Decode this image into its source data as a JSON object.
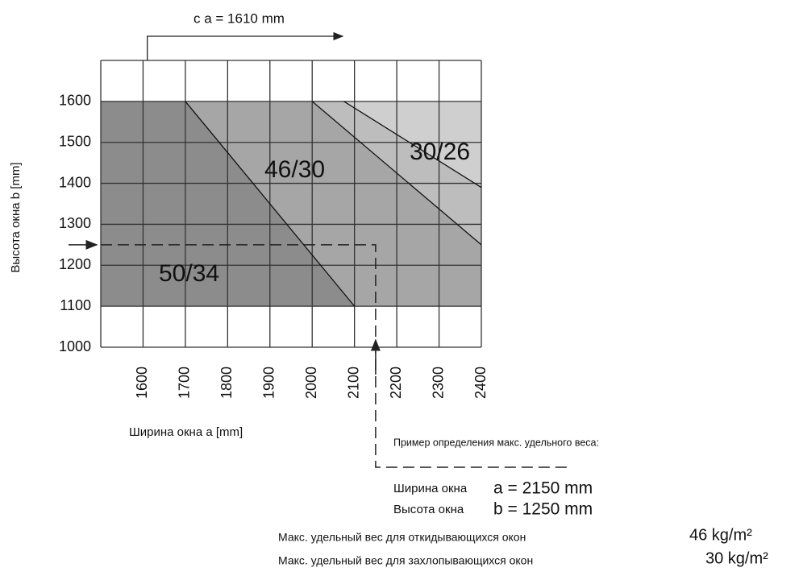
{
  "chart_data": {
    "type": "zones",
    "x_label": "Ширина окна  a  [mm]",
    "y_label": "Высота окна  b  [mm]",
    "xlim": [
      1500,
      2400
    ],
    "ylim": [
      1000,
      1700
    ],
    "xticks": [
      1600,
      1700,
      1800,
      1900,
      2000,
      2100,
      2200,
      2300,
      2400
    ],
    "yticks": [
      1000,
      1100,
      1200,
      1300,
      1400,
      1500,
      1600
    ],
    "grid": true,
    "shaded_ylim": [
      1100,
      1600
    ],
    "boundaries": [
      {
        "x": [
          1700,
          2100
        ],
        "y": [
          1600,
          1100
        ]
      },
      {
        "x": [
          2000,
          2400
        ],
        "y": [
          1600,
          1250
        ]
      },
      {
        "x": [
          2075,
          2400
        ],
        "y": [
          1600,
          1390
        ]
      }
    ],
    "zones": [
      {
        "name": "50/34",
        "color": "#8c8c8c"
      },
      {
        "name": "46/30",
        "color": "#a6a6a6"
      },
      {
        "name": "30/26",
        "color": "#bdbdbd"
      },
      {
        "color": "#cfcfcf"
      }
    ],
    "limit": {
      "label": "c  a = 1610 mm",
      "x": 1610
    },
    "example": {
      "x": 2150,
      "y": 1250,
      "title": "Пример определения макс. удельного веса:",
      "lines": [
        {
          "label": "Ширина окна",
          "value": "a = 2150 mm"
        },
        {
          "label": "Высота окна",
          "value": "b = 1250 mm"
        }
      ],
      "results": [
        {
          "label": "Макс. удельный вес для откидывающихся окон",
          "value": "46 kg/m²"
        },
        {
          "label": "Макс. удельный вес для захлопывающихся окон",
          "value": "30 kg/m²"
        }
      ]
    }
  }
}
